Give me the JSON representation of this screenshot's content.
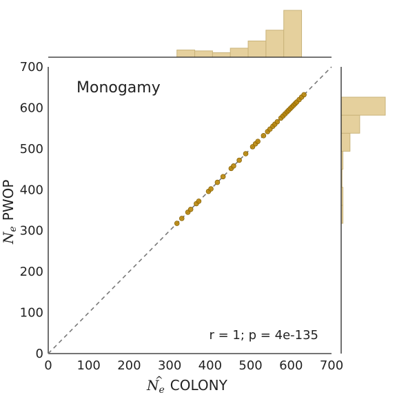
{
  "chart_data": {
    "type": "scatter",
    "title": "",
    "annotation": "Monogamy",
    "stat_text": "r = 1; p = 4e-135",
    "xlabel": {
      "symbol": "N",
      "subscript": "e",
      "hat": "^",
      "text": "COLONY"
    },
    "ylabel": {
      "symbol": "N",
      "subscript": "e",
      "text": "PWOP"
    },
    "xlim": [
      0,
      700
    ],
    "ylim": [
      0,
      700
    ],
    "xticks": [
      0,
      100,
      200,
      300,
      400,
      500,
      600,
      700
    ],
    "yticks": [
      0,
      100,
      200,
      300,
      400,
      500,
      600,
      700
    ],
    "grid": false,
    "reference_line": "y = x (dashed)",
    "colors": {
      "points": "#b8860b",
      "point_edge": "#8a6508",
      "hist_fill": "#e5d09d",
      "hist_edge": "#c9b37a",
      "ref_line": "#777777"
    },
    "x": [
      318,
      330,
      345,
      352,
      366,
      372,
      396,
      402,
      418,
      432,
      452,
      458,
      472,
      488,
      505,
      512,
      518,
      532,
      542,
      548,
      555,
      560,
      566,
      575,
      580,
      585,
      590,
      594,
      598,
      602,
      606,
      610,
      614,
      620,
      626,
      632
    ],
    "y": [
      318,
      330,
      345,
      352,
      366,
      372,
      396,
      402,
      418,
      432,
      452,
      458,
      472,
      488,
      505,
      512,
      518,
      532,
      542,
      548,
      555,
      560,
      566,
      575,
      580,
      585,
      590,
      594,
      598,
      602,
      606,
      610,
      614,
      620,
      626,
      632
    ],
    "x_hist": {
      "bin_edges": [
        318,
        362,
        406,
        450,
        494,
        538,
        582,
        626
      ],
      "counts": [
        4,
        3.5,
        2.5,
        5,
        9,
        15,
        26
      ]
    },
    "y_hist": {
      "bin_edges": [
        318,
        362,
        406,
        450,
        494,
        538,
        582,
        626
      ],
      "counts": [
        1,
        1,
        0.5,
        1,
        5,
        10.5,
        25
      ]
    }
  }
}
